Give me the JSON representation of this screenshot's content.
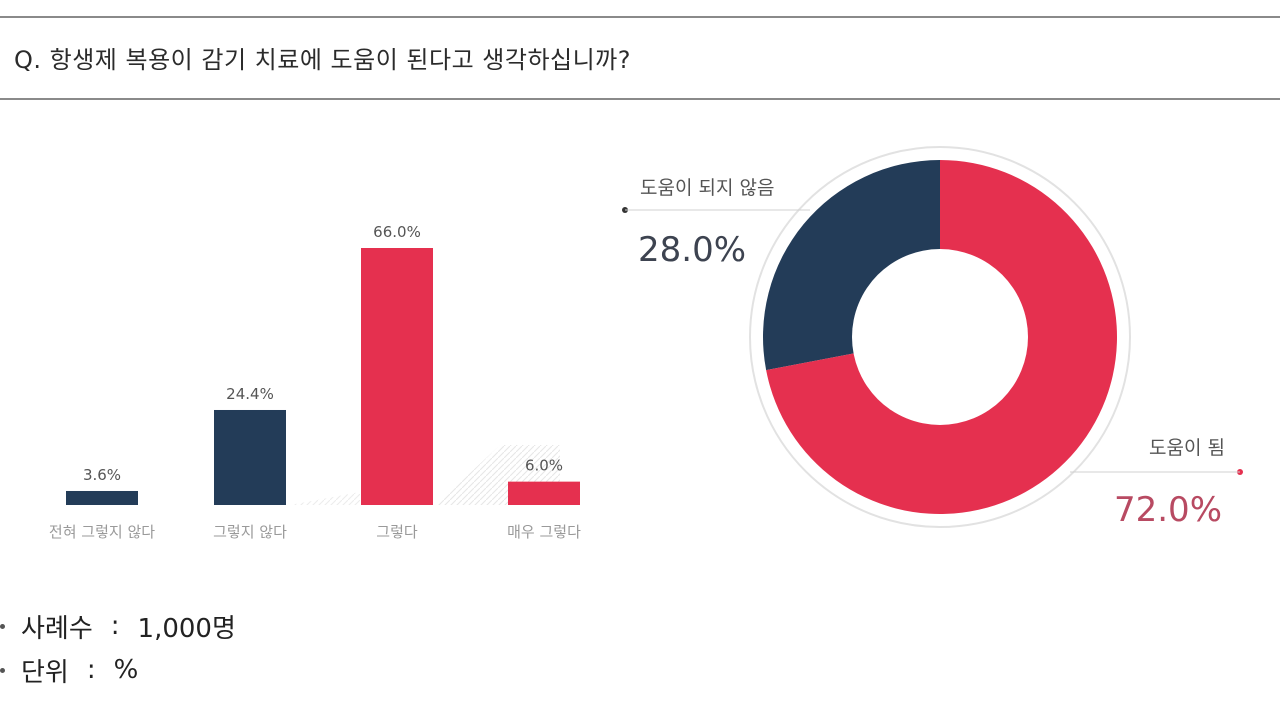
{
  "question": "Q. 항생제 복용이 감기 치료에 도움이 된다고 생각하십니까?",
  "colors": {
    "accent": "#e5304f",
    "navy": "#233c58"
  },
  "chart_data": [
    {
      "type": "bar",
      "categories": [
        "전혀 그렇지 않다",
        "그렇지 않다",
        "그렇다",
        "매우 그렇다"
      ],
      "values": [
        3.6,
        24.4,
        66.0,
        6.0
      ],
      "value_labels": [
        "3.6%",
        "24.4%",
        "66.0%",
        "6.0%"
      ],
      "bar_colors": [
        "#233c58",
        "#233c58",
        "#e5304f",
        "#e5304f"
      ],
      "ylim": [
        0,
        70
      ],
      "grid": false
    },
    {
      "type": "pie",
      "donut": true,
      "labels": [
        "도움이 되지 않음",
        "도움이 됨"
      ],
      "values": [
        28.0,
        72.0
      ],
      "value_labels": [
        "28.0%",
        "72.0%"
      ],
      "slice_colors": [
        "#233c58",
        "#e5304f"
      ]
    }
  ],
  "notes": [
    {
      "label": "사례수",
      "sep": ":",
      "value": "1,000명"
    },
    {
      "label": "단위",
      "sep": ":",
      "value": "%"
    }
  ]
}
